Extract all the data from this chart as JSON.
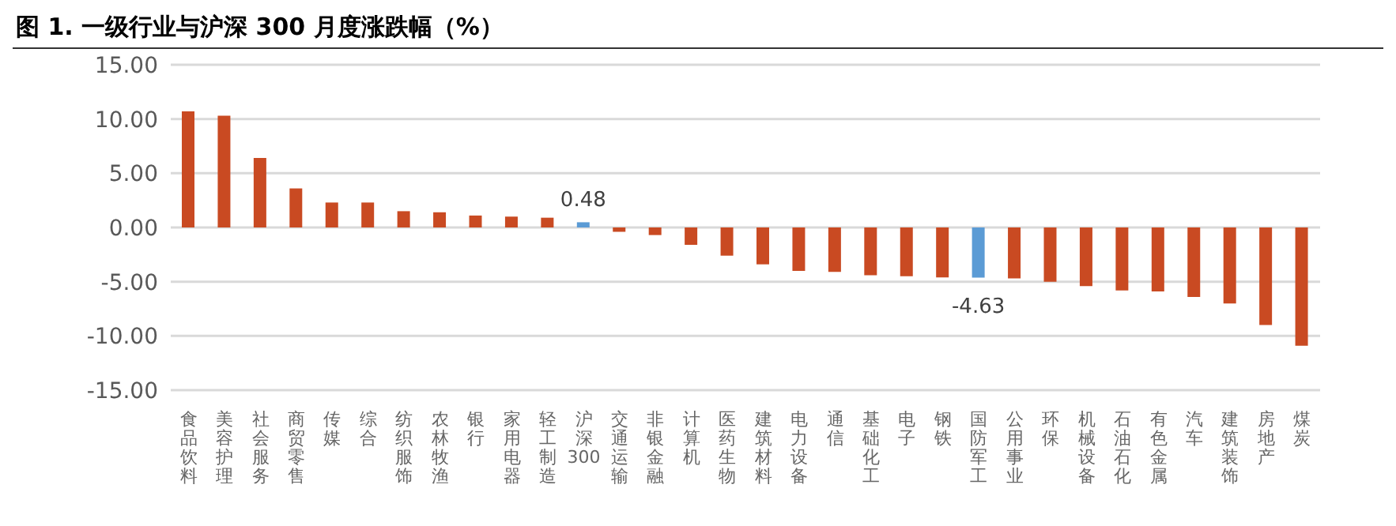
{
  "chart_data": {
    "type": "bar",
    "title": "图 1. 一级行业与沪深 300 月度涨跌幅（%）",
    "categories": [
      "食品饮料",
      "美容护理",
      "社会服务",
      "商贸零售",
      "传媒",
      "综合",
      "纺织服饰",
      "农林牧渔",
      "银行",
      "家用电器",
      "轻工制造",
      "沪深300",
      "交通运输",
      "非银金融",
      "计算机",
      "医药生物",
      "建筑材料",
      "电力设备",
      "通信",
      "基础化工",
      "电子",
      "钢铁",
      "国防军工",
      "公用事业",
      "环保",
      "机械设备",
      "石油石化",
      "有色金属",
      "汽车",
      "建筑装饰",
      "房地产",
      "煤炭"
    ],
    "values": [
      10.7,
      10.3,
      6.4,
      3.6,
      2.3,
      2.3,
      1.5,
      1.4,
      1.1,
      1.0,
      0.9,
      0.48,
      -0.4,
      -0.7,
      -1.6,
      -2.6,
      -3.4,
      -4.0,
      -4.1,
      -4.4,
      -4.5,
      -4.6,
      -4.63,
      -4.7,
      -5.0,
      -5.4,
      -5.8,
      -5.9,
      -6.4,
      -7.0,
      -9.0,
      -10.9
    ],
    "colors": [
      "#c94a22",
      "#c94a22",
      "#c94a22",
      "#c94a22",
      "#c94a22",
      "#c94a22",
      "#c94a22",
      "#c94a22",
      "#c94a22",
      "#c94a22",
      "#c94a22",
      "#5b9bd5",
      "#c94a22",
      "#c94a22",
      "#c94a22",
      "#c94a22",
      "#c94a22",
      "#c94a22",
      "#c94a22",
      "#c94a22",
      "#c94a22",
      "#c94a22",
      "#5b9bd5",
      "#c94a22",
      "#c94a22",
      "#c94a22",
      "#c94a22",
      "#c94a22",
      "#c94a22",
      "#c94a22",
      "#c94a22",
      "#c94a22"
    ],
    "value_labels": [
      null,
      null,
      null,
      null,
      null,
      null,
      null,
      null,
      null,
      null,
      null,
      "0.48",
      null,
      null,
      null,
      null,
      null,
      null,
      null,
      null,
      null,
      null,
      "-4.63",
      null,
      null,
      null,
      null,
      null,
      null,
      null,
      null,
      null
    ],
    "ylim": [
      -15,
      15
    ],
    "yticks": [
      {
        "value": -15,
        "label": "-15.00"
      },
      {
        "value": -10,
        "label": "-10.00"
      },
      {
        "value": -5,
        "label": "-5.00"
      },
      {
        "value": 0,
        "label": "0.00"
      },
      {
        "value": 5,
        "label": "5.00"
      },
      {
        "value": 10,
        "label": "10.00"
      },
      {
        "value": 15,
        "label": "15.00"
      }
    ],
    "grid": "y"
  }
}
